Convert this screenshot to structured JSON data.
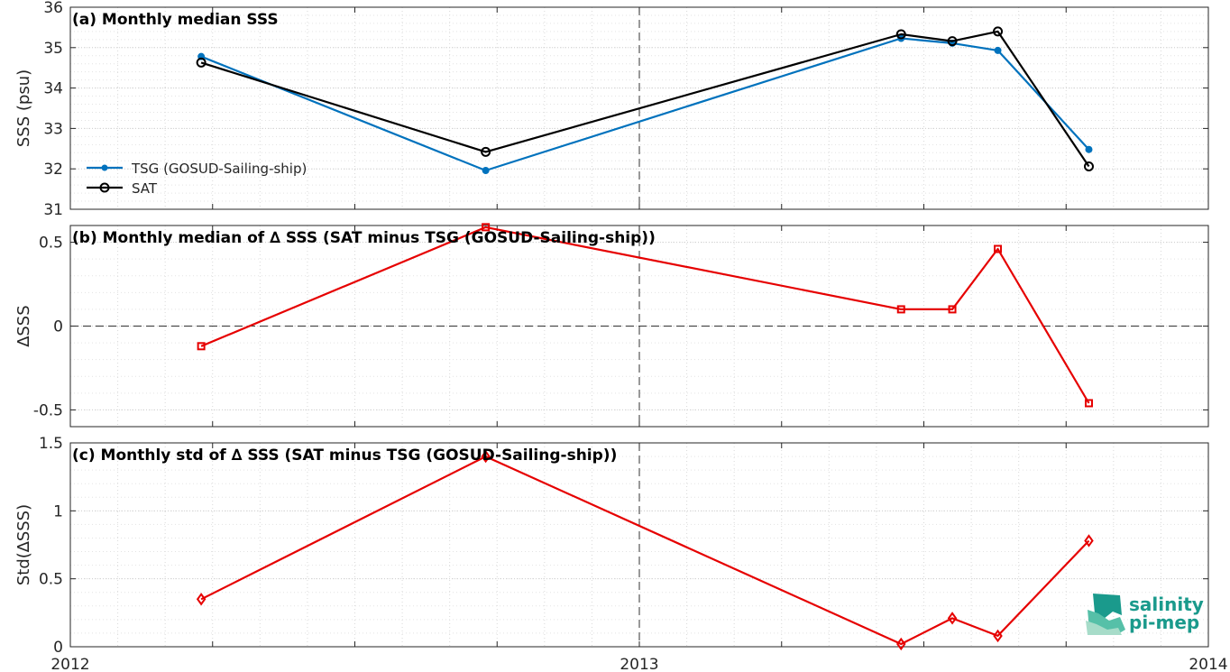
{
  "chart_data": [
    {
      "type": "line",
      "title": "(a) Monthly median SSS",
      "xlabel": "",
      "ylabel": "SSS (psu)",
      "ylim": [
        31,
        36
      ],
      "yticks": [
        31,
        32,
        33,
        34,
        35,
        36
      ],
      "xlim": [
        2012.0,
        2014.0
      ],
      "grid": true,
      "legend_position": "center-left",
      "series": [
        {
          "name": "TSG (GOSUD-Sailing-ship)",
          "color": "#0072bd",
          "marker": "dot",
          "x": [
            2012.23,
            2012.73,
            2013.46,
            2013.55,
            2013.63,
            2013.79
          ],
          "y": [
            34.78,
            31.96,
            35.23,
            35.11,
            34.93,
            32.48
          ]
        },
        {
          "name": "SAT",
          "color": "#000000",
          "marker": "circle",
          "x": [
            2012.23,
            2012.73,
            2013.46,
            2013.55,
            2013.63,
            2013.79
          ],
          "y": [
            34.63,
            32.42,
            35.33,
            35.16,
            35.4,
            32.06
          ]
        }
      ]
    },
    {
      "type": "line",
      "title": "(b) Monthly median of ∆ SSS (SAT minus TSG (GOSUD-Sailing-ship))",
      "xlabel": "",
      "ylabel": "∆SSS",
      "ylim": [
        -0.6,
        0.6
      ],
      "yticks": [
        -0.5,
        0,
        0.5
      ],
      "ytick_labels": [
        "-0.5",
        "0",
        "0.5"
      ],
      "xlim": [
        2012.0,
        2014.0
      ],
      "grid": true,
      "series": [
        {
          "color": "#e60000",
          "marker": "square",
          "x": [
            2012.23,
            2012.73,
            2013.46,
            2013.55,
            2013.63,
            2013.79
          ],
          "y": [
            -0.12,
            0.59,
            0.1,
            0.1,
            0.46,
            -0.46
          ]
        }
      ]
    },
    {
      "type": "line",
      "title": "(c) Monthly std of ∆ SSS (SAT minus TSG (GOSUD-Sailing-ship))",
      "xlabel": "",
      "ylabel": "Std(∆SSS)",
      "ylim": [
        0,
        1.5
      ],
      "yticks": [
        0,
        0.5,
        1,
        1.5
      ],
      "ytick_labels": [
        "0",
        "0.5",
        "1",
        "1.5"
      ],
      "xlim": [
        2012.0,
        2014.0
      ],
      "xticks": [
        2012,
        2013,
        2014
      ],
      "xtick_labels": [
        "2012",
        "2013",
        "2014"
      ],
      "grid": true,
      "series": [
        {
          "color": "#e60000",
          "marker": "diamond",
          "x": [
            2012.23,
            2012.73,
            2013.46,
            2013.55,
            2013.63,
            2013.79
          ],
          "y": [
            0.35,
            1.4,
            0.02,
            0.21,
            0.08,
            0.78
          ]
        }
      ]
    }
  ],
  "logo": {
    "line1": "salinity",
    "line2": "pi-mep",
    "color": "#1a9a8c"
  }
}
